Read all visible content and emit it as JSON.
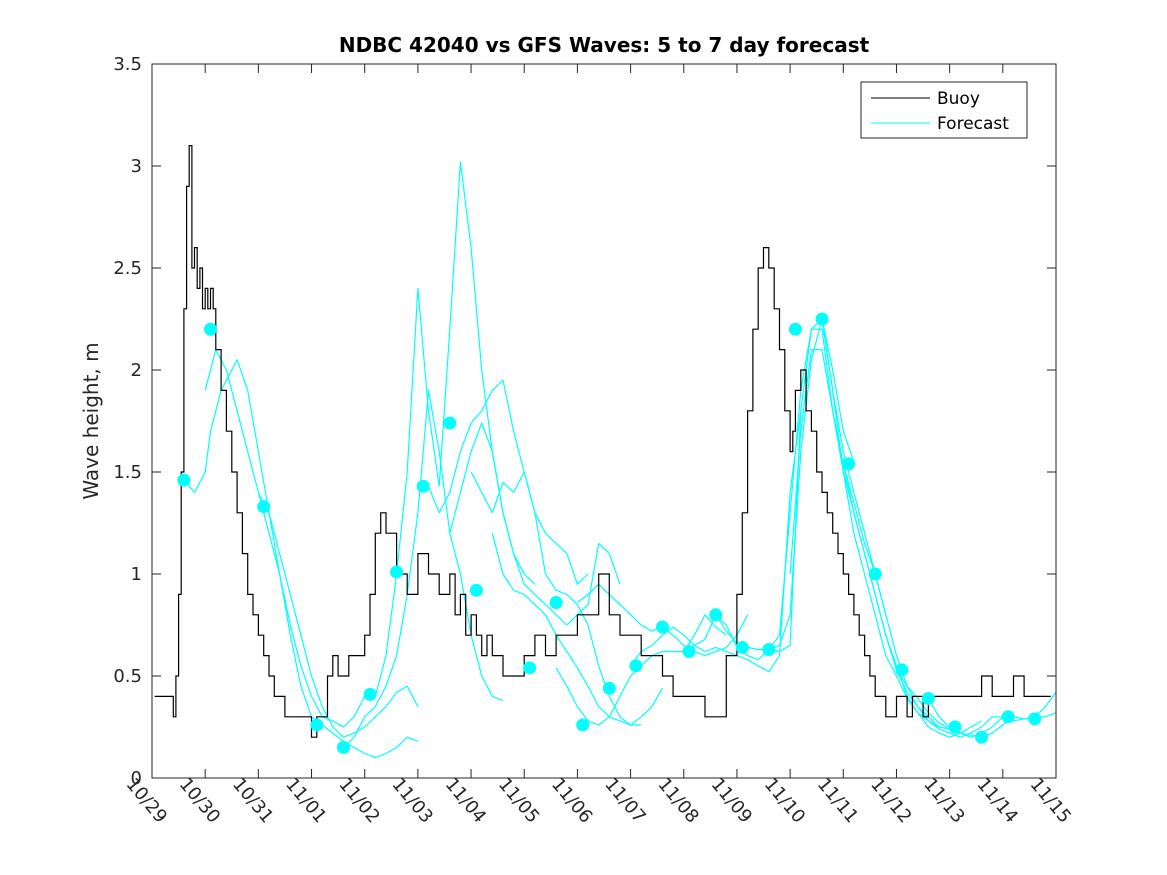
{
  "chart_data": {
    "type": "line",
    "title": "NDBC 42040 vs GFS Waves: 5 to 7 day forecast",
    "xlabel": "",
    "ylabel": "Wave height, m",
    "ylim": [
      0,
      3.5
    ],
    "xlim": [
      0,
      17
    ],
    "yticks": [
      0,
      0.5,
      1,
      1.5,
      2,
      2.5,
      3,
      3.5
    ],
    "ytick_labels": [
      "0",
      "0.5",
      "1",
      "1.5",
      "2",
      "2.5",
      "3",
      "3.5"
    ],
    "xtick_labels": [
      "10/29",
      "10/30",
      "10/31",
      "11/01",
      "11/02",
      "11/03",
      "11/04",
      "11/05",
      "11/06",
      "11/07",
      "11/08",
      "11/09",
      "11/10",
      "11/11",
      "11/12",
      "11/13",
      "11/14",
      "11/15"
    ],
    "legend": {
      "position": "top-right",
      "entries": [
        {
          "label": "Buoy",
          "color": "#000000"
        },
        {
          "label": "Forecast",
          "color": "#00ffff"
        }
      ]
    },
    "colors": {
      "buoy": "#000000",
      "forecast": "#00ffff",
      "axis": "#262626"
    },
    "buoy": {
      "name": "Buoy",
      "x": [
        0.05,
        0.35,
        0.4,
        0.45,
        0.5,
        0.55,
        0.6,
        0.65,
        0.7,
        0.75,
        0.8,
        0.85,
        0.9,
        0.95,
        1.0,
        1.05,
        1.1,
        1.15,
        1.2,
        1.3,
        1.4,
        1.5,
        1.6,
        1.7,
        1.8,
        1.9,
        2.0,
        2.1,
        2.2,
        2.3,
        2.4,
        2.5,
        2.6,
        2.7,
        2.8,
        2.9,
        3.0,
        3.1,
        3.2,
        3.3,
        3.4,
        3.5,
        3.6,
        3.7,
        3.8,
        3.9,
        4.0,
        4.1,
        4.2,
        4.3,
        4.4,
        4.5,
        4.6,
        4.8,
        5.0,
        5.2,
        5.4,
        5.5,
        5.6,
        5.7,
        5.8,
        5.9,
        6.0,
        6.1,
        6.2,
        6.3,
        6.4,
        6.5,
        6.6,
        6.8,
        7.0,
        7.2,
        7.4,
        7.6,
        7.8,
        8.0,
        8.2,
        8.4,
        8.6,
        8.8,
        9.0,
        9.2,
        9.4,
        9.6,
        9.8,
        10.0,
        10.2,
        10.4,
        10.6,
        10.8,
        11.0,
        11.1,
        11.2,
        11.3,
        11.4,
        11.5,
        11.6,
        11.7,
        11.8,
        11.9,
        12.0,
        12.05,
        12.1,
        12.2,
        12.3,
        12.4,
        12.5,
        12.6,
        12.7,
        12.8,
        12.9,
        13.0,
        13.1,
        13.2,
        13.3,
        13.4,
        13.5,
        13.6,
        13.7,
        13.8,
        13.9,
        14.0,
        14.1,
        14.2,
        14.3,
        14.4,
        14.5,
        14.6,
        14.7,
        14.8,
        14.9,
        15.0,
        15.2,
        15.4,
        15.6,
        15.8,
        16.0,
        16.2,
        16.4,
        16.6,
        16.8,
        16.9
      ],
      "values": [
        0.4,
        0.4,
        0.3,
        0.5,
        0.9,
        1.5,
        2.3,
        2.9,
        3.1,
        2.5,
        2.6,
        2.4,
        2.5,
        2.3,
        2.4,
        2.3,
        2.4,
        2.3,
        2.1,
        1.9,
        1.7,
        1.5,
        1.3,
        1.1,
        0.9,
        0.8,
        0.7,
        0.6,
        0.5,
        0.4,
        0.4,
        0.3,
        0.3,
        0.3,
        0.3,
        0.3,
        0.2,
        0.3,
        0.3,
        0.5,
        0.6,
        0.5,
        0.5,
        0.6,
        0.6,
        0.6,
        0.7,
        0.9,
        1.2,
        1.3,
        1.2,
        1.2,
        1.0,
        0.9,
        1.1,
        1.0,
        0.9,
        0.9,
        1.0,
        0.8,
        0.9,
        0.7,
        0.8,
        0.7,
        0.6,
        0.7,
        0.6,
        0.6,
        0.5,
        0.5,
        0.6,
        0.7,
        0.6,
        0.7,
        0.7,
        0.8,
        0.8,
        1.0,
        0.8,
        0.7,
        0.7,
        0.6,
        0.6,
        0.5,
        0.4,
        0.4,
        0.4,
        0.3,
        0.3,
        0.6,
        0.9,
        1.3,
        1.8,
        2.2,
        2.5,
        2.6,
        2.5,
        2.3,
        2.1,
        1.8,
        1.6,
        1.7,
        1.9,
        2.0,
        1.8,
        1.7,
        1.5,
        1.4,
        1.3,
        1.2,
        1.1,
        1.0,
        0.9,
        0.8,
        0.7,
        0.6,
        0.5,
        0.4,
        0.4,
        0.3,
        0.3,
        0.4,
        0.4,
        0.3,
        0.4,
        0.4,
        0.3,
        0.4,
        0.4,
        0.4,
        0.4,
        0.4,
        0.4,
        0.4,
        0.5,
        0.4,
        0.4,
        0.5,
        0.4,
        0.4,
        0.4,
        0.4
      ]
    },
    "forecast_series": [
      {
        "name": "Forecast",
        "x": [
          0.6,
          0.8,
          1.0,
          1.1,
          1.2,
          1.3,
          1.4,
          1.5,
          1.6,
          1.8,
          2.0,
          2.2,
          2.4,
          2.6,
          2.8,
          3.0
        ],
        "values": [
          1.46,
          1.4,
          1.5,
          1.7,
          1.8,
          1.9,
          1.95,
          2.0,
          2.05,
          1.9,
          1.6,
          1.3,
          1.0,
          0.7,
          0.45,
          0.3
        ]
      },
      {
        "name": "Forecast",
        "x": [
          1.0,
          1.2,
          1.4,
          1.6,
          1.8,
          2.0,
          2.2,
          2.4,
          2.6,
          2.8,
          3.0,
          3.2,
          3.4,
          3.6,
          3.8,
          4.0
        ],
        "values": [
          1.9,
          2.1,
          2.0,
          1.8,
          1.6,
          1.4,
          1.2,
          1.0,
          0.75,
          0.55,
          0.4,
          0.3,
          0.28,
          0.25,
          0.3,
          0.4
        ]
      },
      {
        "name": "Forecast",
        "x": [
          2.0,
          2.2,
          2.4,
          2.6,
          2.8,
          3.0,
          3.2,
          3.4,
          3.6,
          3.8,
          4.0,
          4.2,
          4.4,
          4.6,
          4.8,
          5.0
        ],
        "values": [
          1.4,
          1.3,
          1.1,
          0.9,
          0.7,
          0.5,
          0.35,
          0.25,
          0.2,
          0.22,
          0.25,
          0.3,
          0.35,
          0.42,
          0.45,
          0.35
        ]
      },
      {
        "name": "Forecast",
        "x": [
          3.0,
          3.2,
          3.4,
          3.6,
          3.8,
          4.0,
          4.2,
          4.4,
          4.6,
          4.8,
          5.0
        ],
        "values": [
          0.3,
          0.26,
          0.22,
          0.18,
          0.15,
          0.12,
          0.1,
          0.12,
          0.15,
          0.2,
          0.18
        ]
      },
      {
        "name": "Forecast",
        "x": [
          3.6,
          3.8,
          4.0,
          4.2,
          4.4,
          4.6,
          4.8,
          5.0,
          5.2,
          5.4,
          5.6,
          5.8,
          6.0,
          6.2,
          6.4,
          6.6
        ],
        "values": [
          0.15,
          0.2,
          0.3,
          0.35,
          0.45,
          0.6,
          0.9,
          1.3,
          1.9,
          1.6,
          1.2,
          1.0,
          0.7,
          0.5,
          0.4,
          0.38
        ]
      },
      {
        "name": "Forecast",
        "x": [
          4.2,
          4.4,
          4.6,
          4.8,
          5.0,
          5.2,
          5.4,
          5.6,
          5.8,
          6.0,
          6.2,
          6.4,
          6.6,
          6.8,
          7.0,
          7.2
        ],
        "values": [
          0.4,
          0.6,
          1.0,
          1.5,
          2.4,
          1.8,
          1.43,
          2.2,
          3.02,
          2.6,
          2.0,
          1.6,
          1.3,
          1.1,
          1.0,
          0.95
        ]
      },
      {
        "name": "Forecast",
        "x": [
          5.2,
          5.4,
          5.6,
          5.8,
          6.0,
          6.2,
          6.4,
          6.6,
          6.8,
          7.0,
          7.2,
          7.4,
          7.6,
          7.8,
          8.0,
          8.2
        ],
        "values": [
          1.43,
          1.3,
          1.4,
          1.6,
          1.74,
          1.8,
          1.9,
          1.95,
          1.7,
          1.5,
          1.3,
          1.2,
          1.15,
          1.1,
          0.95,
          1.0
        ]
      },
      {
        "name": "Forecast",
        "x": [
          5.6,
          5.8,
          6.0,
          6.2,
          6.4,
          6.6,
          6.8,
          7.0,
          7.2,
          7.4,
          7.6,
          7.8,
          8.0,
          8.2,
          8.4,
          8.6,
          8.8
        ],
        "values": [
          1.2,
          1.4,
          1.6,
          1.74,
          1.6,
          1.3,
          1.1,
          0.95,
          0.9,
          0.85,
          0.8,
          0.75,
          0.8,
          0.85,
          1.15,
          1.1,
          0.95
        ]
      },
      {
        "name": "Forecast",
        "x": [
          6.0,
          6.2,
          6.4,
          6.6,
          6.8,
          7.0,
          7.2,
          7.4,
          7.6,
          7.8,
          8.0,
          8.2,
          8.4,
          8.6,
          8.8,
          9.0,
          9.2
        ],
        "values": [
          1.5,
          1.4,
          1.3,
          1.45,
          1.4,
          1.5,
          1.3,
          1.0,
          0.92,
          0.9,
          0.85,
          0.75,
          0.55,
          0.4,
          0.3,
          0.26,
          0.26
        ]
      },
      {
        "name": "Forecast",
        "x": [
          6.4,
          6.6,
          6.8,
          7.0,
          7.2,
          7.4,
          7.6,
          7.8,
          8.0,
          8.2,
          8.4,
          8.6,
          8.8,
          9.0,
          9.2,
          9.4,
          9.6
        ],
        "values": [
          1.2,
          1.0,
          0.92,
          0.9,
          0.85,
          0.8,
          0.7,
          0.62,
          0.54,
          0.45,
          0.35,
          0.3,
          0.28,
          0.26,
          0.3,
          0.35,
          0.44
        ]
      },
      {
        "name": "Forecast",
        "x": [
          7.6,
          7.8,
          8.0,
          8.2,
          8.4,
          8.6,
          8.8,
          9.0,
          9.2,
          9.4,
          9.6,
          9.8,
          10.0,
          10.2,
          10.4,
          10.6,
          10.8
        ],
        "values": [
          0.54,
          0.45,
          0.35,
          0.28,
          0.26,
          0.3,
          0.4,
          0.5,
          0.55,
          0.6,
          0.62,
          0.62,
          0.62,
          0.7,
          0.8,
          0.74,
          0.7
        ]
      },
      {
        "name": "Forecast",
        "x": [
          8.0,
          8.2,
          8.4,
          8.6,
          8.8,
          9.0,
          9.2,
          9.4,
          9.6,
          9.8,
          10.0,
          10.2,
          10.4,
          10.6,
          10.8,
          11.0,
          11.2
        ],
        "values": [
          0.86,
          0.9,
          0.95,
          0.9,
          0.85,
          0.8,
          0.75,
          0.72,
          0.74,
          0.7,
          0.65,
          0.62,
          0.6,
          0.62,
          0.64,
          0.7,
          0.8
        ]
      },
      {
        "name": "Forecast",
        "x": [
          9.0,
          9.2,
          9.4,
          9.6,
          9.8,
          10.0,
          10.2,
          10.4,
          10.6,
          10.8,
          11.0,
          11.2,
          11.4,
          11.6,
          11.8,
          12.0,
          12.2
        ],
        "values": [
          0.55,
          0.62,
          0.65,
          0.7,
          0.74,
          0.7,
          0.65,
          0.62,
          0.64,
          0.62,
          0.6,
          0.58,
          0.55,
          0.52,
          0.6,
          1.4,
          1.8
        ]
      },
      {
        "name": "Forecast",
        "x": [
          10.0,
          10.2,
          10.4,
          10.6,
          10.8,
          11.0,
          11.2,
          11.4,
          11.6,
          11.8,
          12.0,
          12.2,
          12.4,
          12.6,
          12.8,
          13.0,
          13.2
        ],
        "values": [
          0.62,
          0.65,
          0.68,
          0.8,
          0.75,
          0.64,
          0.6,
          0.58,
          0.63,
          0.65,
          0.8,
          1.6,
          2.05,
          2.25,
          2.0,
          1.7,
          1.55
        ]
      },
      {
        "name": "Forecast",
        "x": [
          10.6,
          10.8,
          11.0,
          11.2,
          11.4,
          11.6,
          11.8,
          12.0,
          12.2,
          12.4,
          12.6,
          12.8,
          13.0,
          13.2,
          13.4,
          13.6,
          13.8
        ],
        "values": [
          0.8,
          0.72,
          0.66,
          0.64,
          0.63,
          0.63,
          0.62,
          0.65,
          1.8,
          2.2,
          2.25,
          1.9,
          1.6,
          1.4,
          1.2,
          1.0,
          0.8
        ]
      },
      {
        "name": "Forecast",
        "x": [
          11.6,
          11.8,
          12.0,
          12.2,
          12.4,
          12.6,
          12.8,
          13.0,
          13.2,
          13.4,
          13.6,
          13.8,
          14.0,
          14.2,
          14.4,
          14.6,
          14.8
        ],
        "values": [
          0.63,
          0.7,
          1.3,
          1.9,
          2.2,
          2.2,
          1.8,
          1.5,
          1.3,
          1.1,
          0.9,
          0.7,
          0.53,
          0.42,
          0.35,
          0.3,
          0.25
        ]
      },
      {
        "name": "Forecast",
        "x": [
          12.0,
          12.2,
          12.4,
          12.6,
          12.8,
          13.0,
          13.2,
          13.4,
          13.6,
          13.8,
          14.0,
          14.2,
          14.4,
          14.6,
          14.8,
          15.0
        ],
        "values": [
          1.0,
          1.7,
          2.1,
          2.1,
          1.8,
          1.54,
          1.3,
          1.1,
          0.9,
          0.7,
          0.55,
          0.4,
          0.32,
          0.28,
          0.25,
          0.24
        ]
      },
      {
        "name": "Forecast",
        "x": [
          12.6,
          12.8,
          13.0,
          13.2,
          13.4,
          13.6,
          13.8,
          14.0,
          14.2,
          14.4,
          14.6,
          14.8,
          15.0,
          15.2,
          15.4,
          15.6
        ],
        "values": [
          2.25,
          1.9,
          1.5,
          1.2,
          1.0,
          0.8,
          0.6,
          0.5,
          0.39,
          0.32,
          0.25,
          0.22,
          0.2,
          0.22,
          0.25,
          0.28
        ]
      },
      {
        "name": "Forecast",
        "x": [
          13.0,
          13.2,
          13.4,
          13.6,
          13.8,
          14.0,
          14.2,
          14.4,
          14.6,
          14.8,
          15.0,
          15.2,
          15.4,
          15.6,
          15.8,
          16.0
        ],
        "values": [
          1.54,
          1.35,
          1.15,
          1.0,
          0.8,
          0.6,
          0.45,
          0.35,
          0.28,
          0.24,
          0.22,
          0.2,
          0.22,
          0.25,
          0.3,
          0.3
        ]
      },
      {
        "name": "Forecast",
        "x": [
          14.0,
          14.2,
          14.4,
          14.6,
          14.8,
          15.0,
          15.2,
          15.4,
          15.6,
          15.8,
          16.0,
          16.2,
          16.4,
          16.6,
          16.8,
          17.0
        ],
        "values": [
          0.53,
          0.45,
          0.39,
          0.32,
          0.27,
          0.24,
          0.22,
          0.2,
          0.22,
          0.25,
          0.3,
          0.28,
          0.29,
          0.3,
          0.35,
          0.42
        ]
      },
      {
        "name": "Forecast",
        "x": [
          14.6,
          14.8,
          15.0,
          15.2,
          15.4,
          15.6,
          15.8,
          16.0,
          16.2,
          16.4,
          16.6,
          16.8,
          17.0
        ],
        "values": [
          0.39,
          0.3,
          0.25,
          0.22,
          0.21,
          0.2,
          0.22,
          0.26,
          0.3,
          0.29,
          0.3,
          0.3,
          0.32
        ]
      }
    ],
    "forecast_markers": {
      "x": [
        0.6,
        1.1,
        2.1,
        3.1,
        3.6,
        4.1,
        4.6,
        5.1,
        5.6,
        6.1,
        7.1,
        7.6,
        8.1,
        8.6,
        9.1,
        9.6,
        10.1,
        10.6,
        11.1,
        11.6,
        12.1,
        12.6,
        13.1,
        13.6,
        14.1,
        14.6,
        15.1,
        15.6,
        16.1,
        16.6
      ],
      "values": [
        1.46,
        2.2,
        1.33,
        0.26,
        0.15,
        0.41,
        1.01,
        1.43,
        1.74,
        0.92,
        0.54,
        0.86,
        0.26,
        0.44,
        0.55,
        0.74,
        0.62,
        0.8,
        0.64,
        0.63,
        2.2,
        2.25,
        1.54,
        1.0,
        0.53,
        0.39,
        0.25,
        0.2,
        0.3,
        0.29
      ]
    }
  }
}
